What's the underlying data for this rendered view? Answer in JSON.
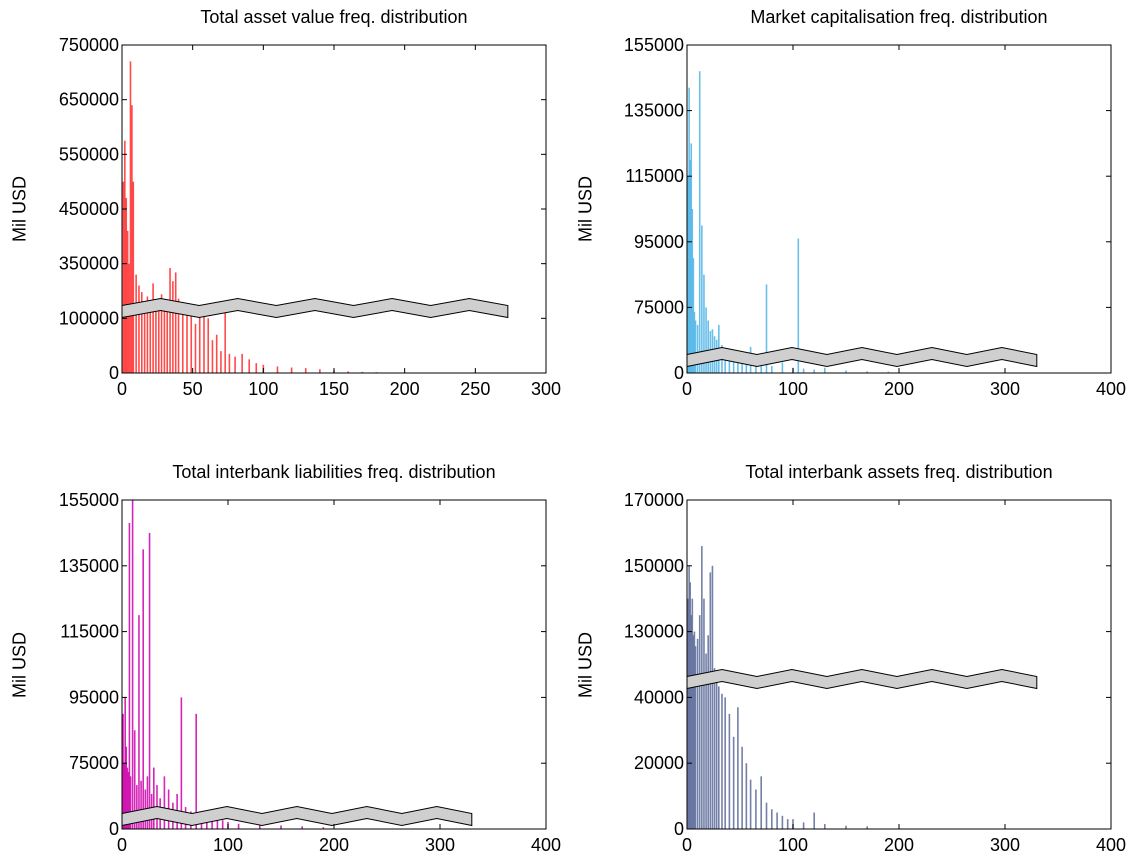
{
  "chart_data": [
    {
      "type": "bar",
      "title": "Total asset value freq. distribution",
      "xlabel": "",
      "ylabel": "Mil USD",
      "xlim": [
        0,
        300
      ],
      "ylim": [
        0,
        750000
      ],
      "xticks": [
        0,
        50,
        100,
        150,
        200,
        250,
        300
      ],
      "yticks": [
        0,
        100000,
        350000,
        450000,
        550000,
        650000,
        750000
      ],
      "ytick_labels": [
        "0",
        "100000",
        "350000",
        "450000",
        "550000",
        "650000",
        "750000"
      ],
      "axis_break": true,
      "bar_color": "#ff2a2a",
      "grid": false,
      "x": [
        1,
        2,
        3,
        4,
        5,
        6,
        7,
        8,
        10,
        12,
        14,
        16,
        18,
        20,
        22,
        24,
        26,
        28,
        30,
        32,
        34,
        36,
        38,
        40,
        43,
        46,
        49,
        52,
        55,
        58,
        61,
        64,
        67,
        70,
        73,
        76,
        80,
        85,
        90,
        95,
        100,
        110,
        120,
        130,
        140,
        150,
        160,
        170,
        180
      ],
      "values": [
        500000,
        575000,
        470000,
        410000,
        350000,
        720000,
        640000,
        500000,
        300000,
        250000,
        220000,
        170000,
        200000,
        150000,
        260000,
        130000,
        150000,
        210000,
        170000,
        140000,
        330000,
        270000,
        310000,
        190000,
        120000,
        140000,
        110000,
        90000,
        150000,
        120000,
        100000,
        60000,
        70000,
        40000,
        145000,
        35000,
        30000,
        35000,
        25000,
        18000,
        15000,
        12000,
        10000,
        9000,
        7000,
        5000,
        3000,
        2000,
        1500
      ]
    },
    {
      "type": "bar",
      "title": "Market capitalisation freq. distribution",
      "xlabel": "",
      "ylabel": "Mil USD",
      "xlim": [
        0,
        400
      ],
      "ylim": [
        0,
        155000
      ],
      "xticks": [
        0,
        100,
        200,
        300,
        400
      ],
      "yticks": [
        0,
        75000,
        95000,
        115000,
        135000,
        155000
      ],
      "ytick_labels": [
        "0",
        "75000",
        "95000",
        "115000",
        "135000",
        "155000"
      ],
      "axis_break": true,
      "bar_color": "#4fb4e6",
      "grid": false,
      "x": [
        1,
        2,
        3,
        4,
        5,
        6,
        7,
        8,
        10,
        12,
        14,
        16,
        18,
        20,
        22,
        24,
        26,
        28,
        30,
        33,
        36,
        40,
        44,
        48,
        52,
        56,
        60,
        65,
        70,
        75,
        80,
        90,
        100,
        105,
        110,
        120,
        130,
        150,
        170,
        190
      ],
      "values": [
        115000,
        142000,
        120000,
        125000,
        105000,
        90000,
        70000,
        60000,
        55000,
        147000,
        100000,
        85000,
        75000,
        60000,
        48000,
        50000,
        42000,
        38000,
        55000,
        32000,
        28000,
        25000,
        22000,
        18000,
        15000,
        12000,
        30000,
        10000,
        9000,
        82000,
        8000,
        12000,
        6000,
        96000,
        5000,
        4000,
        6000,
        3000,
        2000,
        1500
      ]
    },
    {
      "type": "bar",
      "title": "Total interbank liabilities freq. distribution",
      "xlabel": "",
      "ylabel": "Mil USD",
      "xlim": [
        0,
        400
      ],
      "ylim": [
        0,
        155000
      ],
      "xticks": [
        0,
        100,
        200,
        300,
        400
      ],
      "yticks": [
        0,
        75000,
        95000,
        115000,
        135000,
        155000
      ],
      "ytick_labels": [
        "0",
        "75000",
        "95000",
        "115000",
        "135000",
        "155000"
      ],
      "axis_break": true,
      "bar_color": "#cc00aa",
      "grid": false,
      "x": [
        1,
        2,
        3,
        4,
        5,
        6,
        7,
        8,
        10,
        12,
        14,
        16,
        18,
        20,
        22,
        24,
        26,
        28,
        30,
        33,
        36,
        40,
        44,
        48,
        52,
        56,
        60,
        65,
        70,
        75,
        80,
        85,
        90,
        95,
        100,
        110,
        130,
        150,
        170,
        190
      ],
      "values": [
        90000,
        75000,
        95000,
        80000,
        70000,
        65000,
        148000,
        60000,
        155000,
        85000,
        50000,
        120000,
        55000,
        140000,
        45000,
        60000,
        145000,
        40000,
        70000,
        50000,
        35000,
        60000,
        45000,
        30000,
        40000,
        95000,
        25000,
        20000,
        90000,
        18000,
        15000,
        12000,
        22000,
        10000,
        8000,
        6000,
        5000,
        4000,
        3000,
        2000
      ]
    },
    {
      "type": "bar",
      "title": "Total interbank assets freq. distribution",
      "xlabel": "",
      "ylabel": "Mil USD",
      "xlim": [
        0,
        400
      ],
      "ylim": [
        0,
        170000
      ],
      "xticks": [
        0,
        100,
        200,
        300,
        400
      ],
      "yticks": [
        0,
        20000,
        40000,
        130000,
        150000,
        170000
      ],
      "ytick_labels": [
        "0",
        "20000",
        "40000",
        "130000",
        "150000",
        "170000"
      ],
      "axis_break": true,
      "bar_color": "#5a6a98",
      "grid": false,
      "x": [
        1,
        2,
        3,
        4,
        5,
        6,
        7,
        8,
        10,
        12,
        14,
        16,
        18,
        20,
        22,
        24,
        26,
        28,
        30,
        33,
        36,
        40,
        44,
        48,
        52,
        56,
        60,
        65,
        70,
        75,
        80,
        85,
        90,
        95,
        100,
        110,
        120,
        130,
        150,
        170
      ],
      "values": [
        140000,
        150000,
        145000,
        135000,
        140000,
        125000,
        130000,
        110000,
        120000,
        135000,
        156000,
        140000,
        100000,
        125000,
        148000,
        150000,
        80000,
        60000,
        55000,
        45000,
        40000,
        35000,
        28000,
        37000,
        25000,
        20000,
        15000,
        12000,
        16000,
        8000,
        6000,
        5000,
        4000,
        3000,
        3000,
        2000,
        5000,
        1500,
        1000,
        800
      ]
    }
  ]
}
